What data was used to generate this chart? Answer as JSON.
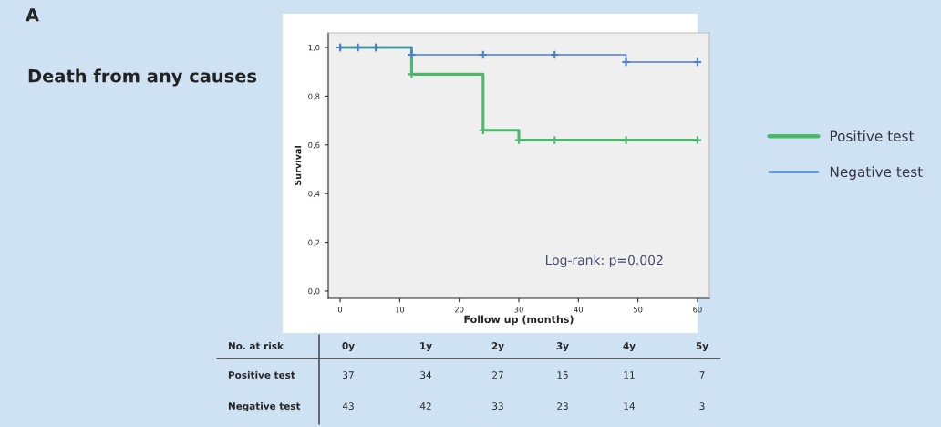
{
  "chart_data": {
    "type": "step",
    "title": "Death from any causes",
    "xlabel": "Follow up (months)",
    "ylabel": "Survival",
    "xlim": [
      -2,
      62
    ],
    "xticks": [
      0,
      10,
      20,
      30,
      40,
      50,
      60
    ],
    "ylim": [
      -0.03,
      1.06
    ],
    "yticks": [
      {
        "value": 0,
        "label": "0,0"
      },
      {
        "value": 0.2,
        "label": "0,2"
      },
      {
        "value": 0.4,
        "label": "0,4"
      },
      {
        "value": 0.6,
        "label": "0,6"
      },
      {
        "value": 0.8,
        "label": "0,8"
      },
      {
        "value": 1.0,
        "label": "1,0"
      }
    ],
    "series": [
      {
        "name": "Positive test",
        "color": "#4cb86b",
        "x": [
          0,
          6,
          12,
          24,
          30,
          36,
          48,
          60
        ],
        "values": [
          1.0,
          1.0,
          0.89,
          0.66,
          0.62,
          0.62,
          0.62,
          0.62
        ]
      },
      {
        "name": "Negative test",
        "color": "#4a7fcf",
        "x": [
          0,
          3,
          6,
          12,
          24,
          36,
          48,
          60
        ],
        "values": [
          1.0,
          1.0,
          1.0,
          0.97,
          0.97,
          0.97,
          0.94,
          0.94
        ]
      }
    ],
    "marker": "cross",
    "grid": false,
    "legend": "right",
    "annotations": [
      "A",
      "Log-rank: p=0.002",
      "No. at risk",
      "0y",
      "1y",
      "2y",
      "3y",
      "4y",
      "5y",
      "Positive test",
      "37",
      "34",
      "27",
      "15",
      "11",
      "7",
      "Negative test",
      "43",
      "42",
      "33",
      "23",
      "14",
      "3"
    ]
  }
}
